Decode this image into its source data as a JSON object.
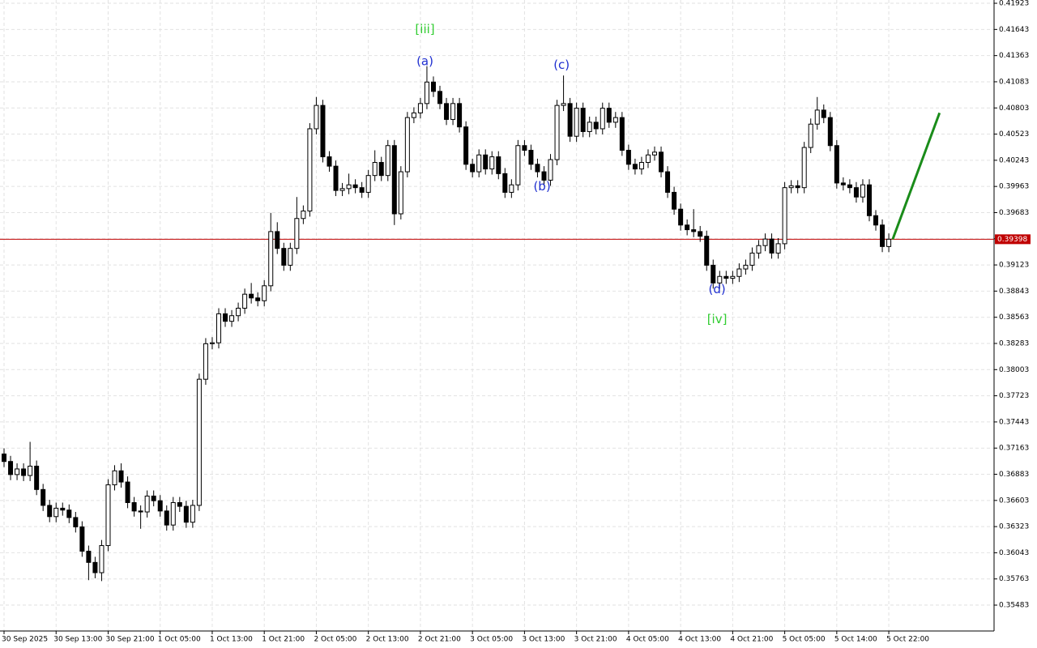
{
  "chart_data": {
    "type": "candlestick",
    "categories": [
      "30 Sep 2025",
      null,
      null,
      null,
      null,
      null,
      null,
      null,
      "30 Sep 13:00",
      null,
      null,
      null,
      null,
      null,
      null,
      null,
      "30 Sep 21:00",
      null,
      null,
      null,
      null,
      null,
      null,
      null,
      "1 Oct 05:00",
      null,
      null,
      null,
      null,
      null,
      null,
      null,
      "1 Oct 13:00",
      null,
      null,
      null,
      null,
      null,
      null,
      null,
      "1 Oct 21:00",
      null,
      null,
      null,
      null,
      null,
      null,
      null,
      "2 Oct 05:00",
      null,
      null,
      null,
      null,
      null,
      null,
      null,
      "2 Oct 13:00",
      null,
      null,
      null,
      null,
      null,
      null,
      null,
      "2 Oct 21:00",
      null,
      null,
      null,
      null,
      null,
      null,
      null,
      "3 Oct 05:00",
      null,
      null,
      null,
      null,
      null,
      null,
      null,
      "3 Oct 13:00",
      null,
      null,
      null,
      null,
      null,
      null,
      null,
      "3 Oct 21:00",
      null,
      null,
      null,
      null,
      null,
      null,
      null,
      "4 Oct 05:00",
      null,
      null,
      null,
      null,
      null,
      null,
      null,
      "4 Oct 13:00",
      null,
      null,
      null,
      null,
      null,
      null,
      null,
      "4 Oct 21:00",
      null,
      null,
      null,
      null,
      null,
      null,
      null,
      "5 Oct 05:00",
      null,
      null,
      null,
      null,
      null,
      null,
      null,
      "5 Oct 14:00",
      null,
      null,
      null,
      null,
      null,
      null,
      null,
      "5 Oct 22:00"
    ],
    "open": [
      0.371,
      0.3702,
      0.3688,
      0.3694,
      0.3687,
      0.3697,
      0.3672,
      0.3655,
      0.3643,
      0.3652,
      0.365,
      0.3642,
      0.3632,
      0.3606,
      0.3594,
      0.3583,
      0.3612,
      0.3677,
      0.3692,
      0.368,
      0.3658,
      0.3649,
      0.3648,
      0.3665,
      0.366,
      0.3649,
      0.3634,
      0.3658,
      0.3654,
      0.3637,
      0.3655,
      0.379,
      0.3828,
      0.3829,
      0.386,
      0.3852,
      0.3858,
      0.3866,
      0.3881,
      0.3877,
      0.3874,
      0.389,
      0.3948,
      0.393,
      0.3912,
      0.393,
      0.3962,
      0.397,
      0.4058,
      0.4083,
      0.4028,
      0.4018,
      0.3992,
      0.3994,
      0.3998,
      0.3995,
      0.399,
      0.4008,
      0.4022,
      0.4008,
      0.404,
      0.3967,
      0.4012,
      0.407,
      0.4075,
      0.4085,
      0.4108,
      0.4098,
      0.4085,
      0.4068,
      0.4085,
      0.406,
      0.402,
      0.4012,
      0.403,
      0.4015,
      0.4028,
      0.401,
      0.399,
      0.3998,
      0.404,
      0.4035,
      0.402,
      0.4012,
      0.4003,
      0.4025,
      0.4083,
      0.4085,
      0.405,
      0.408,
      0.4055,
      0.4065,
      0.4058,
      0.408,
      0.4065,
      0.407,
      0.4035,
      0.402,
      0.4015,
      0.4022,
      0.403,
      0.4033,
      0.4012,
      0.399,
      0.3972,
      0.3955,
      0.395,
      0.3948,
      0.3943,
      0.3912,
      0.3893,
      0.39,
      0.3898,
      0.39,
      0.3908,
      0.3912,
      0.3925,
      0.3933,
      0.394,
      0.3925,
      0.3935,
      0.3995,
      0.3997,
      0.3995,
      0.4038,
      0.4063,
      0.4078,
      0.407,
      0.404,
      0.4,
      0.3998,
      0.3995,
      0.3985,
      0.3998,
      0.3965,
      0.3955,
      0.3932
    ],
    "high": [
      0.3716,
      0.3708,
      0.37,
      0.37,
      0.3723,
      0.3703,
      0.3678,
      0.3661,
      0.3658,
      0.3658,
      0.3656,
      0.3648,
      0.3638,
      0.3612,
      0.36,
      0.3618,
      0.3683,
      0.3698,
      0.37,
      0.3686,
      0.3664,
      0.3655,
      0.3671,
      0.3671,
      0.3666,
      0.3655,
      0.3664,
      0.3664,
      0.366,
      0.3661,
      0.3796,
      0.3834,
      0.3835,
      0.3866,
      0.3866,
      0.3864,
      0.3872,
      0.3887,
      0.3893,
      0.3883,
      0.3896,
      0.3968,
      0.3958,
      0.3936,
      0.3936,
      0.3985,
      0.3976,
      0.4064,
      0.4092,
      0.4089,
      0.4034,
      0.4024,
      0.4,
      0.401,
      0.4004,
      0.4001,
      0.4014,
      0.4035,
      0.4028,
      0.4046,
      0.4046,
      0.4018,
      0.4076,
      0.4081,
      0.4091,
      0.4125,
      0.4114,
      0.4104,
      0.4091,
      0.4091,
      0.4091,
      0.4066,
      0.4026,
      0.4036,
      0.4036,
      0.4034,
      0.4034,
      0.4016,
      0.4004,
      0.4046,
      0.4046,
      0.4041,
      0.4026,
      0.4018,
      0.4031,
      0.4089,
      0.4115,
      0.4091,
      0.4086,
      0.4086,
      0.4071,
      0.4071,
      0.4086,
      0.4086,
      0.4076,
      0.4076,
      0.4041,
      0.4026,
      0.4028,
      0.4036,
      0.4039,
      0.4039,
      0.4018,
      0.3996,
      0.3978,
      0.3961,
      0.3972,
      0.3954,
      0.3949,
      0.3918,
      0.3906,
      0.3906,
      0.3906,
      0.3914,
      0.3918,
      0.3931,
      0.3939,
      0.3946,
      0.3946,
      0.3941,
      0.4001,
      0.4003,
      0.4003,
      0.4044,
      0.4069,
      0.4092,
      0.4084,
      0.4076,
      0.4046,
      0.4006,
      0.4004,
      0.4001,
      0.4004,
      0.4004,
      0.3971,
      0.3961,
      0.3946
    ],
    "low": [
      0.3696,
      0.3682,
      0.3682,
      0.3681,
      0.3681,
      0.3666,
      0.3649,
      0.3637,
      0.3637,
      0.3644,
      0.3636,
      0.3626,
      0.36,
      0.3575,
      0.3577,
      0.3574,
      0.3606,
      0.3671,
      0.3674,
      0.3652,
      0.3643,
      0.363,
      0.3642,
      0.3654,
      0.3643,
      0.3628,
      0.3628,
      0.3648,
      0.3631,
      0.3631,
      0.3649,
      0.3784,
      0.3822,
      0.3823,
      0.3846,
      0.3846,
      0.3852,
      0.386,
      0.3871,
      0.3868,
      0.3868,
      0.3884,
      0.3924,
      0.3906,
      0.3906,
      0.3924,
      0.3956,
      0.3964,
      0.4052,
      0.4022,
      0.4012,
      0.3986,
      0.3986,
      0.3988,
      0.3989,
      0.3984,
      0.3984,
      0.4002,
      0.4002,
      0.4002,
      0.3955,
      0.3961,
      0.4006,
      0.4064,
      0.4069,
      0.4079,
      0.4092,
      0.4079,
      0.4062,
      0.4062,
      0.4054,
      0.4014,
      0.4006,
      0.4006,
      0.4009,
      0.4009,
      0.4004,
      0.3984,
      0.3984,
      0.3992,
      0.4029,
      0.4014,
      0.4006,
      0.3997,
      0.3997,
      0.4019,
      0.4077,
      0.4044,
      0.4044,
      0.4049,
      0.4049,
      0.4052,
      0.4052,
      0.4059,
      0.4059,
      0.4029,
      0.4014,
      0.4009,
      0.4009,
      0.4016,
      0.4024,
      0.4006,
      0.3984,
      0.3966,
      0.3949,
      0.3944,
      0.3942,
      0.3937,
      0.3906,
      0.3887,
      0.3887,
      0.3892,
      0.3892,
      0.3894,
      0.3902,
      0.3906,
      0.3919,
      0.3927,
      0.3919,
      0.3919,
      0.3929,
      0.3989,
      0.3989,
      0.3989,
      0.4032,
      0.4057,
      0.4064,
      0.4034,
      0.3994,
      0.3992,
      0.3989,
      0.3979,
      0.3979,
      0.3959,
      0.3949,
      0.3926,
      0.3926
    ],
    "close": [
      0.3702,
      0.3688,
      0.3694,
      0.3687,
      0.3697,
      0.3672,
      0.3655,
      0.3643,
      0.3652,
      0.365,
      0.3642,
      0.3632,
      0.3606,
      0.3594,
      0.3583,
      0.3612,
      0.3677,
      0.3692,
      0.368,
      0.3658,
      0.3649,
      0.3648,
      0.3665,
      0.366,
      0.3649,
      0.3634,
      0.3658,
      0.3654,
      0.3637,
      0.3655,
      0.379,
      0.3828,
      0.3829,
      0.386,
      0.3852,
      0.3858,
      0.3866,
      0.3881,
      0.3877,
      0.3874,
      0.389,
      0.3948,
      0.393,
      0.3912,
      0.393,
      0.3962,
      0.397,
      0.4058,
      0.4083,
      0.4028,
      0.4018,
      0.3992,
      0.3994,
      0.3998,
      0.3995,
      0.399,
      0.4008,
      0.4022,
      0.4008,
      0.404,
      0.3967,
      0.4012,
      0.407,
      0.4075,
      0.4085,
      0.4108,
      0.4098,
      0.4085,
      0.4068,
      0.4085,
      0.406,
      0.402,
      0.4012,
      0.403,
      0.4015,
      0.4028,
      0.401,
      0.399,
      0.3998,
      0.404,
      0.4035,
      0.402,
      0.4012,
      0.4003,
      0.4025,
      0.4083,
      0.4085,
      0.405,
      0.408,
      0.4055,
      0.4065,
      0.4058,
      0.408,
      0.4065,
      0.407,
      0.4035,
      0.402,
      0.4015,
      0.4022,
      0.403,
      0.4033,
      0.4012,
      0.399,
      0.3972,
      0.3955,
      0.395,
      0.3948,
      0.3943,
      0.3912,
      0.3893,
      0.39,
      0.3898,
      0.39,
      0.3908,
      0.3912,
      0.3925,
      0.3933,
      0.394,
      0.3925,
      0.3935,
      0.3995,
      0.3997,
      0.3995,
      0.4038,
      0.4063,
      0.4078,
      0.407,
      0.404,
      0.4,
      0.3998,
      0.3995,
      0.3985,
      0.3998,
      0.3965,
      0.3955,
      0.3932,
      0.39398
    ],
    "ylim": [
      0.35206,
      0.41958
    ],
    "yticks": [
      0.41923,
      0.41643,
      0.41363,
      0.41083,
      0.40803,
      0.40523,
      0.40243,
      0.39963,
      0.39683,
      0.39403,
      0.39123,
      0.38843,
      0.38563,
      0.38283,
      0.38003,
      0.37723,
      0.37443,
      0.37163,
      0.36883,
      0.36603,
      0.36323,
      0.36043,
      0.35763,
      0.35483
    ],
    "grid": true,
    "price_line": {
      "value": 0.39398,
      "color": "#c00000"
    },
    "forecast": {
      "x": [
        136.6,
        143.8
      ],
      "values": [
        0.39398,
        0.4075
      ],
      "color": "#1a8c1a"
    },
    "annotations": [
      {
        "text": "[iii]",
        "x": 64.7,
        "y": 0.4164,
        "color": "#32cd32"
      },
      {
        "text": "(a)",
        "x": 64.7,
        "y": 0.413,
        "color": "#1f2fd0"
      },
      {
        "text": "(b)",
        "x": 82.7,
        "y": 0.3996,
        "color": "#1f2fd0"
      },
      {
        "text": "(c)",
        "x": 85.7,
        "y": 0.4126,
        "color": "#1f2fd0"
      },
      {
        "text": "(d)",
        "x": 109.6,
        "y": 0.3886,
        "color": "#1f2fd0"
      },
      {
        "text": "[iv]",
        "x": 109.6,
        "y": 0.3854,
        "color": "#32cd32"
      }
    ]
  }
}
